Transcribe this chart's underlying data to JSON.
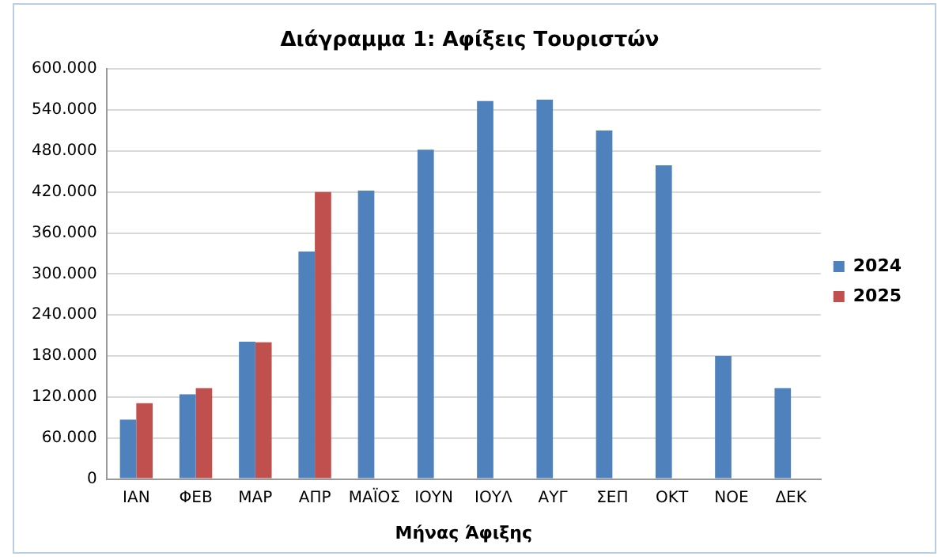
{
  "chart_data": {
    "type": "bar",
    "title": "Διάγραμμα 1: Αφίξεις Τουριστών",
    "xlabel": "Μήνας Άφιξης",
    "categories": [
      "ΙΑΝ",
      "ΦΕΒ",
      "ΜΑΡ",
      "ΑΠΡ",
      "ΜΑΪΟΣ",
      "ΙΟΥΝ",
      "ΙΟΥΛ",
      "ΑΥΓ",
      "ΣΕΠ",
      "ΟΚΤ",
      "ΝΟΕ",
      "ΔΕΚ"
    ],
    "series": [
      {
        "name": "2024",
        "color": "#4f81bd",
        "values": [
          87000,
          124000,
          201000,
          333000,
          422000,
          482000,
          553000,
          555000,
          510000,
          459000,
          180000,
          133000
        ]
      },
      {
        "name": "2025",
        "color": "#c0504d",
        "values": [
          111000,
          133000,
          200000,
          420000,
          null,
          null,
          null,
          null,
          null,
          null,
          null,
          null
        ]
      }
    ],
    "ylim": [
      0,
      600000
    ],
    "yticks": [
      0,
      {
        "value": 60000,
        "label": "60.000"
      },
      {
        "value": 120000,
        "label": "120.000"
      },
      {
        "value": 180000,
        "label": "180.000"
      },
      {
        "value": 240000,
        "label": "240.000"
      },
      {
        "value": 300000,
        "label": "300.000"
      },
      {
        "value": 360000,
        "label": "360.000"
      },
      {
        "value": 420000,
        "label": "420.000"
      },
      {
        "value": 480000,
        "label": "480.000"
      },
      {
        "value": 540000,
        "label": "540.000"
      },
      {
        "value": 600000,
        "label": "600.000"
      }
    ],
    "grid": "y",
    "legend": "right"
  }
}
